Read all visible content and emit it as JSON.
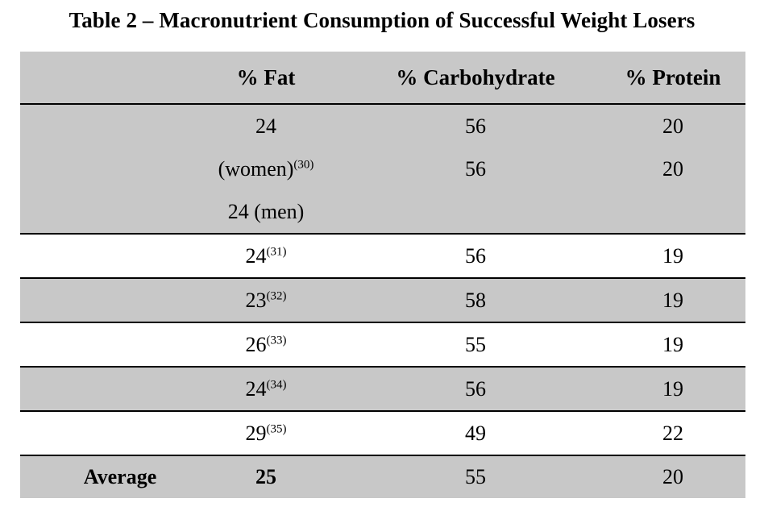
{
  "title": "Table 2 – Macronutrient Consumption of Successful Weight Losers",
  "columns": [
    "",
    "% Fat",
    "% Carbohydrate",
    "% Protein"
  ],
  "rows": [
    {
      "fat_lines": [
        {
          "value": "24",
          "ref": ""
        },
        {
          "value": "(women)",
          "ref": "(30)"
        },
        {
          "value": "24 (men)",
          "ref": ""
        }
      ],
      "carb_lines": [
        "56",
        "56"
      ],
      "protein_lines": [
        "20",
        "20"
      ]
    },
    {
      "fat": "24",
      "ref": "(31)",
      "carb": "56",
      "protein": "19"
    },
    {
      "fat": "23",
      "ref": "(32)",
      "carb": "58",
      "protein": "19"
    },
    {
      "fat": "26",
      "ref": "(33)",
      "carb": "55",
      "protein": "19"
    },
    {
      "fat": "24",
      "ref": "(34)",
      "carb": "56",
      "protein": "19"
    },
    {
      "fat": "29",
      "ref": "(35)",
      "carb": "49",
      "protein": "22"
    }
  ],
  "average": {
    "label": "Average",
    "fat": "25",
    "carb": "55",
    "protein": "20"
  },
  "colors": {
    "shade": "#c8c8c8",
    "rule": "#000000"
  }
}
